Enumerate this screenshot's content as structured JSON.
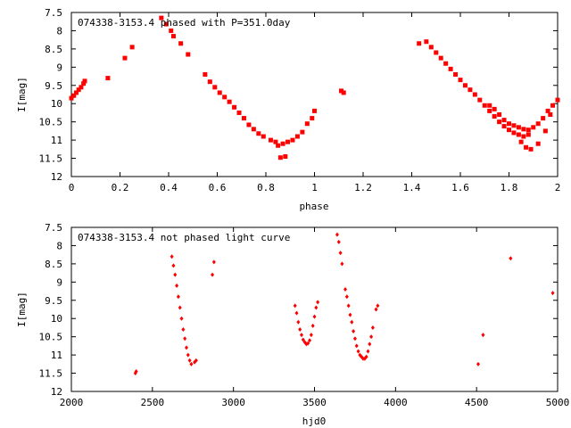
{
  "colors": {
    "points": "#ff0000",
    "axes": "#000000",
    "background": "#ffffff"
  },
  "chart_data": [
    {
      "type": "scatter",
      "title": "074338-3153.4 phased with P=351.0day",
      "xlabel": "phase",
      "ylabel": "I[mag]",
      "xlim": [
        0,
        2
      ],
      "ylim": [
        7.5,
        12
      ],
      "y_inverted": true,
      "grid": false,
      "marker": "filled-square",
      "xticks": [
        "0",
        "0.2",
        "0.4",
        "0.6",
        "0.8",
        "1",
        "1.2",
        "1.4",
        "1.6",
        "1.8",
        "2"
      ],
      "yticks": [
        "7.5",
        "8",
        "8.5",
        "9",
        "9.5",
        "10",
        "10.5",
        "11",
        "11.5",
        "12"
      ],
      "points": [
        [
          0.0,
          9.85
        ],
        [
          0.01,
          9.78
        ],
        [
          0.02,
          9.7
        ],
        [
          0.03,
          9.62
        ],
        [
          0.04,
          9.55
        ],
        [
          0.05,
          9.45
        ],
        [
          0.055,
          9.38
        ],
        [
          0.15,
          9.3
        ],
        [
          0.22,
          8.75
        ],
        [
          0.25,
          8.45
        ],
        [
          0.37,
          7.65
        ],
        [
          0.39,
          7.82
        ],
        [
          0.41,
          8.0
        ],
        [
          0.42,
          8.15
        ],
        [
          0.45,
          8.35
        ],
        [
          0.48,
          8.65
        ],
        [
          0.55,
          9.2
        ],
        [
          0.57,
          9.4
        ],
        [
          0.59,
          9.55
        ],
        [
          0.61,
          9.7
        ],
        [
          0.63,
          9.82
        ],
        [
          0.65,
          9.95
        ],
        [
          0.67,
          10.1
        ],
        [
          0.69,
          10.25
        ],
        [
          0.71,
          10.4
        ],
        [
          0.73,
          10.58
        ],
        [
          0.75,
          10.7
        ],
        [
          0.77,
          10.82
        ],
        [
          0.79,
          10.9
        ],
        [
          0.82,
          11.0
        ],
        [
          0.84,
          11.05
        ],
        [
          0.85,
          11.15
        ],
        [
          0.86,
          11.48
        ],
        [
          0.88,
          11.45
        ],
        [
          0.87,
          11.1
        ],
        [
          0.89,
          11.05
        ],
        [
          0.91,
          11.0
        ],
        [
          0.93,
          10.9
        ],
        [
          0.95,
          10.78
        ],
        [
          0.97,
          10.55
        ],
        [
          0.99,
          10.4
        ],
        [
          1.0,
          10.2
        ],
        [
          1.11,
          9.65
        ],
        [
          1.12,
          9.7
        ],
        [
          1.43,
          8.35
        ],
        [
          1.46,
          8.3
        ],
        [
          1.48,
          8.45
        ],
        [
          1.5,
          8.6
        ],
        [
          1.52,
          8.75
        ],
        [
          1.54,
          8.9
        ],
        [
          1.56,
          9.05
        ],
        [
          1.58,
          9.2
        ],
        [
          1.6,
          9.35
        ],
        [
          1.62,
          9.5
        ],
        [
          1.64,
          9.62
        ],
        [
          1.66,
          9.75
        ],
        [
          1.68,
          9.9
        ],
        [
          1.7,
          10.05
        ],
        [
          1.72,
          10.2
        ],
        [
          1.74,
          10.35
        ],
        [
          1.76,
          10.5
        ],
        [
          1.78,
          10.62
        ],
        [
          1.8,
          10.72
        ],
        [
          1.82,
          10.8
        ],
        [
          1.84,
          10.85
        ],
        [
          1.86,
          10.9
        ],
        [
          1.88,
          10.85
        ],
        [
          1.72,
          10.05
        ],
        [
          1.74,
          10.15
        ],
        [
          1.76,
          10.3
        ],
        [
          1.78,
          10.45
        ],
        [
          1.8,
          10.55
        ],
        [
          1.82,
          10.6
        ],
        [
          1.84,
          10.65
        ],
        [
          1.86,
          10.7
        ],
        [
          1.88,
          10.72
        ],
        [
          1.9,
          10.65
        ],
        [
          1.92,
          10.55
        ],
        [
          1.94,
          10.4
        ],
        [
          1.96,
          10.2
        ],
        [
          1.98,
          10.05
        ],
        [
          2.0,
          9.9
        ],
        [
          1.85,
          11.05
        ],
        [
          1.87,
          11.2
        ],
        [
          1.89,
          11.25
        ],
        [
          1.92,
          11.1
        ],
        [
          1.95,
          10.75
        ],
        [
          1.97,
          10.3
        ]
      ]
    },
    {
      "type": "scatter",
      "title": "074338-3153.4 not phased light curve",
      "xlabel": "hjd0",
      "ylabel": "I[mag]",
      "xlim": [
        2000,
        5000
      ],
      "ylim": [
        7.5,
        12
      ],
      "y_inverted": true,
      "grid": false,
      "marker": "small-diamond",
      "xticks": [
        "2000",
        "2500",
        "3000",
        "3500",
        "4000",
        "4500",
        "5000"
      ],
      "yticks": [
        "7.5",
        "8",
        "8.5",
        "9",
        "9.5",
        "10",
        "10.5",
        "11",
        "11.5",
        "12"
      ],
      "points": [
        [
          2395,
          11.5
        ],
        [
          2400,
          11.45
        ],
        [
          2620,
          8.3
        ],
        [
          2630,
          8.55
        ],
        [
          2640,
          8.8
        ],
        [
          2650,
          9.1
        ],
        [
          2660,
          9.4
        ],
        [
          2670,
          9.7
        ],
        [
          2680,
          10.0
        ],
        [
          2690,
          10.3
        ],
        [
          2700,
          10.55
        ],
        [
          2710,
          10.8
        ],
        [
          2720,
          11.0
        ],
        [
          2730,
          11.15
        ],
        [
          2740,
          11.25
        ],
        [
          2760,
          11.2
        ],
        [
          2770,
          11.15
        ],
        [
          2870,
          8.8
        ],
        [
          2880,
          8.45
        ],
        [
          3380,
          9.65
        ],
        [
          3390,
          9.85
        ],
        [
          3400,
          10.1
        ],
        [
          3410,
          10.3
        ],
        [
          3420,
          10.45
        ],
        [
          3430,
          10.58
        ],
        [
          3440,
          10.65
        ],
        [
          3450,
          10.7
        ],
        [
          3460,
          10.68
        ],
        [
          3470,
          10.6
        ],
        [
          3480,
          10.45
        ],
        [
          3490,
          10.2
        ],
        [
          3500,
          9.95
        ],
        [
          3510,
          9.7
        ],
        [
          3520,
          9.55
        ],
        [
          3640,
          7.7
        ],
        [
          3650,
          7.9
        ],
        [
          3660,
          8.2
        ],
        [
          3670,
          8.5
        ],
        [
          3690,
          9.2
        ],
        [
          3700,
          9.4
        ],
        [
          3710,
          9.65
        ],
        [
          3720,
          9.9
        ],
        [
          3730,
          10.1
        ],
        [
          3740,
          10.35
        ],
        [
          3750,
          10.55
        ],
        [
          3760,
          10.75
        ],
        [
          3770,
          10.9
        ],
        [
          3780,
          11.0
        ],
        [
          3790,
          11.05
        ],
        [
          3800,
          11.1
        ],
        [
          3810,
          11.1
        ],
        [
          3820,
          11.05
        ],
        [
          3830,
          10.9
        ],
        [
          3840,
          10.7
        ],
        [
          3850,
          10.5
        ],
        [
          3860,
          10.25
        ],
        [
          3880,
          9.75
        ],
        [
          3890,
          9.65
        ],
        [
          4510,
          11.25
        ],
        [
          4540,
          10.45
        ],
        [
          4710,
          8.35
        ],
        [
          4970,
          9.3
        ]
      ]
    }
  ]
}
